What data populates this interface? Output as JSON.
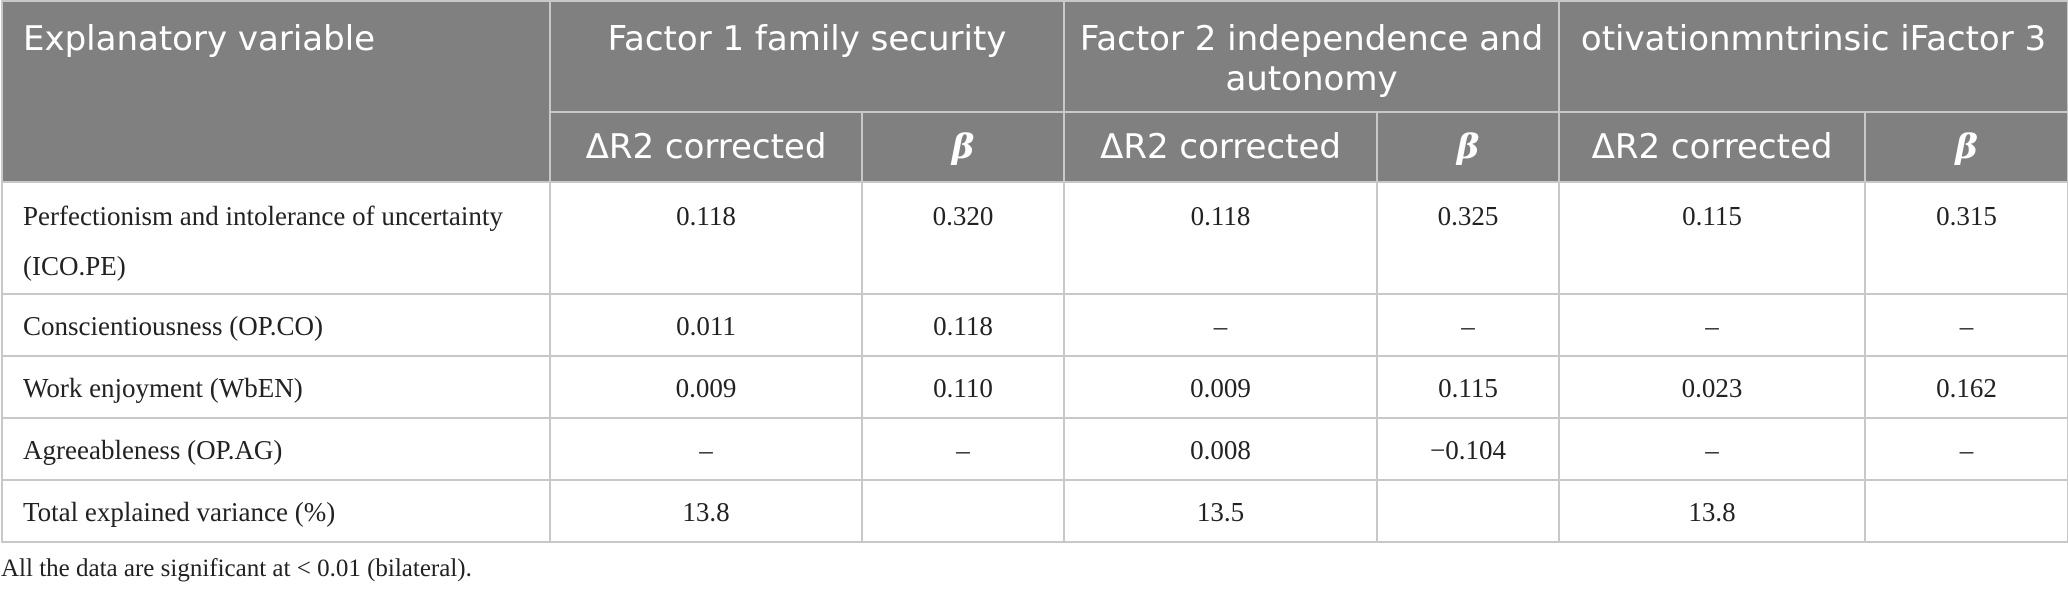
{
  "header": {
    "explanatory_variable": "Explanatory variable",
    "factors": [
      "Factor 1 family security",
      "Factor 2 independence and autonomy",
      "otivationmntrinsic iFactor 3"
    ],
    "sub": [
      "ΔR2 corrected",
      "β"
    ]
  },
  "rows": [
    {
      "label": "Perfectionism and intolerance of uncertainty (ICO.PE)",
      "values": [
        "0.118",
        "0.320",
        "0.118",
        "0.325",
        "0.115",
        "0.315"
      ]
    },
    {
      "label": "Conscientiousness (OP.CO)",
      "values": [
        "0.011",
        "0.118",
        "–",
        "–",
        "–",
        "–"
      ]
    },
    {
      "label": "Work enjoyment (WbEN)",
      "values": [
        "0.009",
        "0.110",
        "0.009",
        "0.115",
        "0.023",
        "0.162"
      ]
    },
    {
      "label": "Agreeableness (OP.AG)",
      "values": [
        "–",
        "–",
        "0.008",
        "−0.104",
        "–",
        "–"
      ]
    },
    {
      "label": "Total explained variance (%)",
      "values": [
        "13.8",
        "",
        "13.5",
        "",
        "13.8",
        ""
      ]
    }
  ],
  "footnote": "All the data are significant at < 0.01 (bilateral)."
}
